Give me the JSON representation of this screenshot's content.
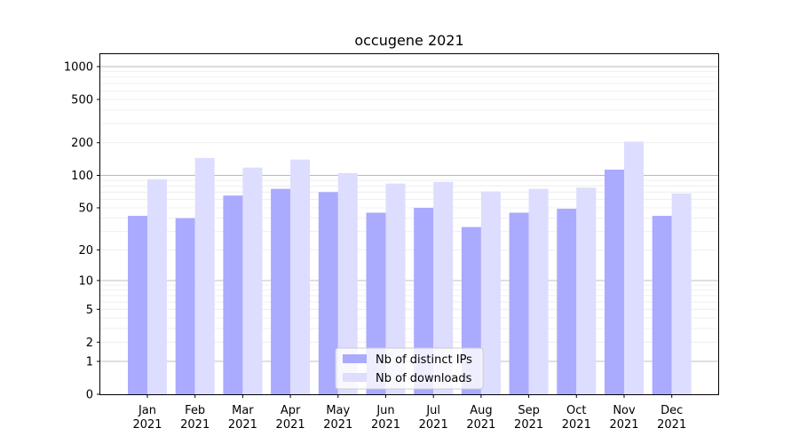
{
  "chart_data": {
    "type": "bar",
    "title": "occugene 2021",
    "xlabel": "",
    "ylabel": "",
    "yscale": "symlog",
    "ylim": [
      0,
      1300
    ],
    "yticks": [
      {
        "value": 0,
        "label": "0"
      },
      {
        "value": 1,
        "label": "1"
      },
      {
        "value": 2,
        "label": "2"
      },
      {
        "value": 5,
        "label": "5"
      },
      {
        "value": 10,
        "label": "10"
      },
      {
        "value": 20,
        "label": "20"
      },
      {
        "value": 50,
        "label": "50"
      },
      {
        "value": 100,
        "label": "100"
      },
      {
        "value": 200,
        "label": "200"
      },
      {
        "value": 500,
        "label": "500"
      },
      {
        "value": 1000,
        "label": "1000"
      }
    ],
    "categories": [
      {
        "month": "Jan",
        "year": "2021"
      },
      {
        "month": "Feb",
        "year": "2021"
      },
      {
        "month": "Mar",
        "year": "2021"
      },
      {
        "month": "Apr",
        "year": "2021"
      },
      {
        "month": "May",
        "year": "2021"
      },
      {
        "month": "Jun",
        "year": "2021"
      },
      {
        "month": "Jul",
        "year": "2021"
      },
      {
        "month": "Aug",
        "year": "2021"
      },
      {
        "month": "Sep",
        "year": "2021"
      },
      {
        "month": "Oct",
        "year": "2021"
      },
      {
        "month": "Nov",
        "year": "2021"
      },
      {
        "month": "Dec",
        "year": "2021"
      }
    ],
    "series": [
      {
        "name": "Nb of distinct IPs",
        "color": "#aaaaff",
        "values": [
          42,
          40,
          65,
          75,
          70,
          45,
          50,
          33,
          45,
          49,
          113,
          42
        ]
      },
      {
        "name": "Nb of downloads",
        "color": "#ddddff",
        "values": [
          92,
          145,
          118,
          140,
          105,
          84,
          87,
          71,
          75,
          77,
          205,
          68
        ]
      }
    ],
    "grid": true,
    "legend_position": "bottom-center"
  }
}
